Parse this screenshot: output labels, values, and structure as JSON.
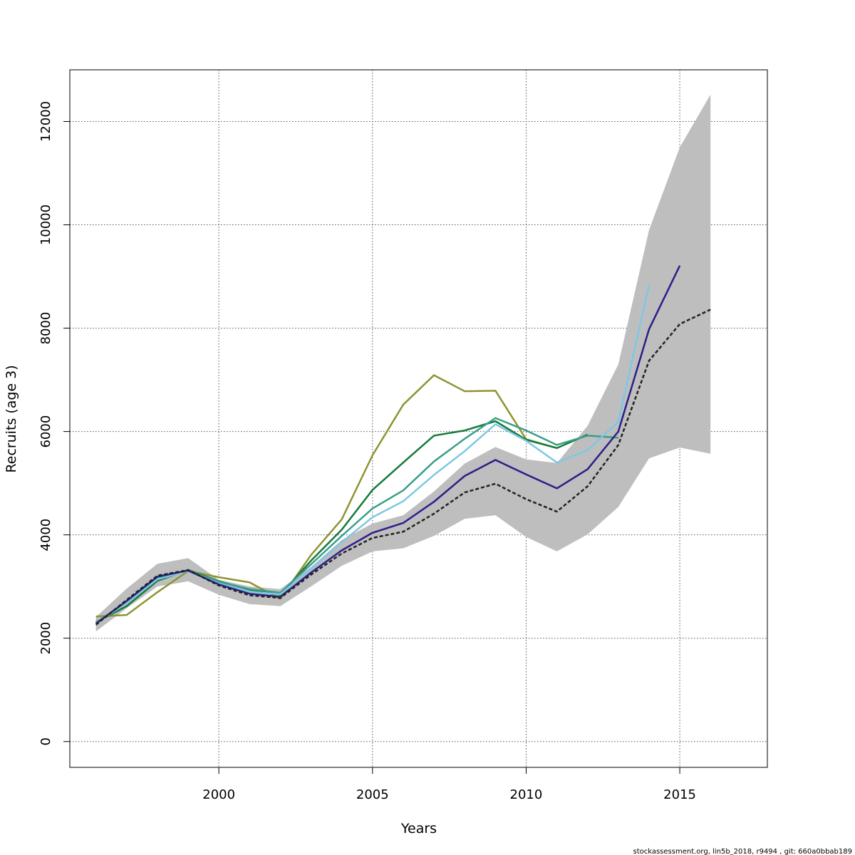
{
  "chart_data": {
    "type": "line",
    "title": "",
    "xlabel": "Years",
    "ylabel": "Recruits (age 3)",
    "xlim": [
      1995.15,
      2017.85
    ],
    "ylim": [
      -500,
      13000
    ],
    "xticks": [
      2000,
      2005,
      2010,
      2015
    ],
    "yticks": [
      0,
      2000,
      4000,
      6000,
      8000,
      10000,
      12000
    ],
    "grid": true,
    "confidence_band": {
      "color": "#bebebe",
      "x": [
        1996,
        1997,
        1998,
        1999,
        2000,
        2001,
        2002,
        2003,
        2004,
        2005,
        2006,
        2007,
        2008,
        2009,
        2010,
        2011,
        2012,
        2013,
        2014,
        2015,
        2016
      ],
      "lower": [
        2130,
        2580,
        3000,
        3100,
        2840,
        2660,
        2620,
        3000,
        3400,
        3680,
        3740,
        3980,
        4310,
        4380,
        3960,
        3680,
        4010,
        4540,
        5480,
        5690,
        5570
      ],
      "upper": [
        2410,
        2960,
        3440,
        3550,
        3130,
        3000,
        2950,
        3380,
        3900,
        4220,
        4380,
        4840,
        5380,
        5700,
        5460,
        5390,
        6110,
        7300,
        9900,
        11500,
        12520
      ]
    },
    "series": [
      {
        "color": "#222222",
        "dashed": true,
        "x": [
          1996,
          1997,
          1998,
          1999,
          2000,
          2001,
          2002,
          2003,
          2004,
          2005,
          2006,
          2007,
          2008,
          2009,
          2010,
          2011,
          2012,
          2013,
          2014,
          2015,
          2016
        ],
        "values": [
          2260,
          2740,
          3210,
          3320,
          3020,
          2830,
          2780,
          3230,
          3640,
          3940,
          4060,
          4410,
          4820,
          4990,
          4690,
          4450,
          4940,
          5740,
          7370,
          8080,
          8360
        ]
      },
      {
        "color": "#2c1e8a",
        "dashed": false,
        "x": [
          1996,
          1997,
          1998,
          1999,
          2000,
          2001,
          2002,
          2003,
          2004,
          2005,
          2006,
          2007,
          2008,
          2009,
          2010,
          2011,
          2012,
          2013,
          2014,
          2015
        ],
        "values": [
          2280,
          2720,
          3190,
          3310,
          3040,
          2860,
          2800,
          3270,
          3700,
          4040,
          4230,
          4640,
          5140,
          5450,
          5170,
          4900,
          5270,
          6000,
          7980,
          9210
        ]
      },
      {
        "color": "#7ec8e3",
        "dashed": false,
        "x": [
          1996,
          1997,
          1998,
          1999,
          2000,
          2001,
          2002,
          2003,
          2004,
          2005,
          2006,
          2007,
          2008,
          2009,
          2010,
          2011,
          2012,
          2013,
          2014
        ],
        "values": [
          2290,
          2680,
          3140,
          3300,
          3060,
          2900,
          2850,
          3340,
          3860,
          4340,
          4650,
          5160,
          5620,
          6140,
          5820,
          5400,
          5640,
          6190,
          8830
        ]
      },
      {
        "color": "#3a9e8a",
        "dashed": false,
        "x": [
          1996,
          1997,
          1998,
          1999,
          2000,
          2001,
          2002,
          2003,
          2004,
          2005,
          2006,
          2007,
          2008,
          2009,
          2010,
          2011,
          2012,
          2013
        ],
        "values": [
          2300,
          2700,
          3150,
          3310,
          3090,
          2950,
          2880,
          3430,
          3980,
          4510,
          4860,
          5420,
          5860,
          6260,
          6020,
          5740,
          5920,
          5880
        ]
      },
      {
        "color": "#157a3a",
        "dashed": false,
        "x": [
          1996,
          1997,
          1998,
          1999,
          2000,
          2001,
          2002,
          2003,
          2004,
          2005,
          2006,
          2007,
          2008,
          2009,
          2010,
          2011,
          2012
        ],
        "values": [
          2310,
          2620,
          3110,
          3320,
          3100,
          2940,
          2840,
          3500,
          4100,
          4870,
          5400,
          5920,
          6020,
          6200,
          5840,
          5680,
          5940
        ]
      },
      {
        "color": "#8f9432",
        "dashed": false,
        "x": [
          1996,
          1997,
          1998,
          1999,
          2000,
          2001,
          2002,
          2003,
          2004,
          2005,
          2006,
          2007,
          2008,
          2009,
          2010,
          2011
        ],
        "values": [
          2420,
          2450,
          2890,
          3300,
          3180,
          3080,
          2760,
          3610,
          4300,
          5540,
          6520,
          7090,
          6780,
          6790,
          5850,
          5680
        ]
      }
    ]
  },
  "footer": {
    "text": "stockassessment.org, lin5b_2018, r9494 , git: 660a0bbab189"
  }
}
